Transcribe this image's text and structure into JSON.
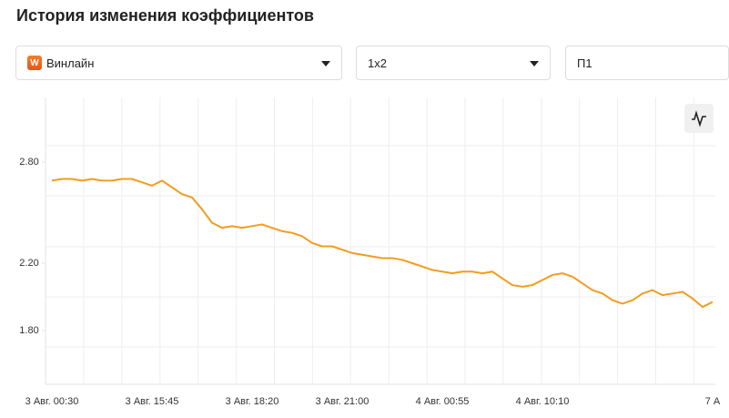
{
  "title": "История изменения коэффициентов",
  "filters": [
    {
      "icon": "W",
      "label": "Винлайн"
    },
    {
      "label": "1х2"
    },
    {
      "label": "П1"
    }
  ],
  "chart_data": {
    "type": "line",
    "categories": [
      "3 Авг. 00:30",
      null,
      null,
      null,
      null,
      null,
      null,
      null,
      null,
      null,
      "3 Авг. 15:45",
      null,
      null,
      null,
      null,
      null,
      null,
      null,
      null,
      null,
      "3 Авг. 18:20",
      null,
      null,
      null,
      null,
      null,
      null,
      null,
      null,
      "3 Авг. 21:00",
      null,
      null,
      null,
      null,
      null,
      null,
      null,
      null,
      null,
      "4 Авг. 00:55",
      null,
      null,
      null,
      null,
      null,
      null,
      null,
      null,
      null,
      "4 Авг. 10:10",
      null,
      null,
      null,
      null,
      null,
      null,
      null,
      null,
      null,
      null,
      null,
      null,
      null,
      null,
      null,
      null,
      "7 А"
    ],
    "series": [
      {
        "color": "#f29c1f",
        "values": [
          2.69,
          2.7,
          2.7,
          2.69,
          2.7,
          2.69,
          2.69,
          2.7,
          2.7,
          2.68,
          2.66,
          2.69,
          2.65,
          2.61,
          2.59,
          2.52,
          2.44,
          2.41,
          2.42,
          2.41,
          2.42,
          2.43,
          2.41,
          2.39,
          2.38,
          2.36,
          2.32,
          2.3,
          2.3,
          2.28,
          2.26,
          2.25,
          2.24,
          2.23,
          2.23,
          2.22,
          2.2,
          2.18,
          2.16,
          2.15,
          2.14,
          2.15,
          2.15,
          2.14,
          2.15,
          2.11,
          2.07,
          2.06,
          2.07,
          2.1,
          2.13,
          2.14,
          2.12,
          2.08,
          2.04,
          2.02,
          1.98,
          1.96,
          1.98,
          2.02,
          2.04,
          2.01,
          2.02,
          2.03,
          1.99,
          1.94,
          1.97
        ]
      }
    ],
    "ylim": [
      1.5,
      3.1
    ],
    "yticks": [
      {
        "value": 2.8,
        "label": "2.80"
      },
      {
        "value": 2.2,
        "label": "2.20"
      },
      {
        "value": 1.8,
        "label": "1.80"
      }
    ]
  }
}
